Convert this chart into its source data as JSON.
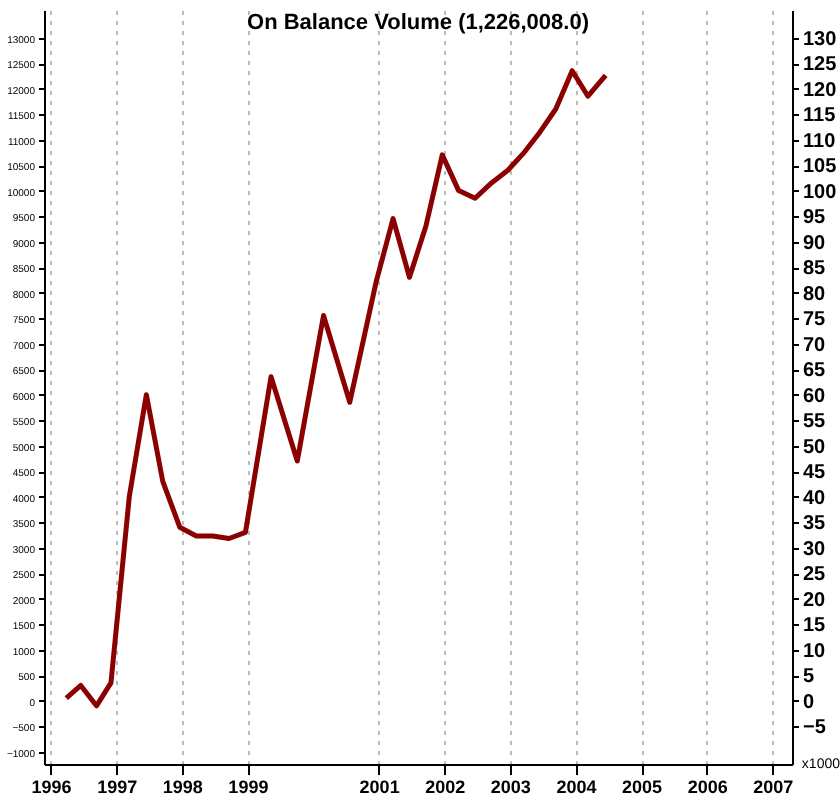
{
  "chart_data": {
    "type": "line",
    "title": "On Balance Volume (1,226,008.0)",
    "x": [
      1996.24,
      1996.46,
      1996.7,
      1996.92,
      1997.2,
      1997.46,
      1997.71,
      1997.97,
      1998.22,
      1998.47,
      1998.72,
      1998.97,
      1999.36,
      1999.76,
      2000.16,
      2000.56,
      2000.96,
      2001.22,
      2001.47,
      2001.72,
      2001.97,
      2002.22,
      2002.47,
      2002.72,
      2002.97,
      2003.22,
      2003.46,
      2003.7,
      2003.95,
      2004.19,
      2004.46
    ],
    "series": [
      {
        "color": "#8b0000",
        "axis": "y2",
        "values": [
          0.5,
          3,
          -1,
          3.5,
          40,
          60,
          43,
          34,
          32.3,
          32.3,
          31.8,
          33,
          63.5,
          47,
          75.5,
          58.5,
          82,
          94.5,
          83,
          93,
          107,
          100,
          98.5,
          101.5,
          104,
          107.5,
          111.5,
          116,
          123.5,
          118.5,
          122.6
        ]
      }
    ],
    "xlim": [
      1995.9,
      2007.3
    ],
    "xticks": [
      1996,
      1997,
      1998,
      1999,
      2001,
      2002,
      2003,
      2004,
      2005,
      2006,
      2007
    ],
    "ylim": [
      -1240,
      13540
    ],
    "yticks": [
      -1000,
      -500,
      0,
      500,
      1000,
      1500,
      2000,
      2500,
      3000,
      3500,
      4000,
      4500,
      5000,
      5500,
      6000,
      6500,
      7000,
      7500,
      8000,
      8500,
      9000,
      9500,
      10000,
      10500,
      11000,
      11500,
      12000,
      12500,
      13000
    ],
    "y2lim": [
      -12.4,
      135.4
    ],
    "y2ticks": [
      -5,
      0,
      5,
      10,
      15,
      20,
      25,
      30,
      35,
      40,
      45,
      50,
      55,
      60,
      65,
      70,
      75,
      80,
      85,
      90,
      95,
      100,
      105,
      110,
      115,
      120,
      125,
      130
    ],
    "annotations": [
      "x1000"
    ],
    "grid": "x",
    "marker": "none",
    "line_style": "solid"
  }
}
